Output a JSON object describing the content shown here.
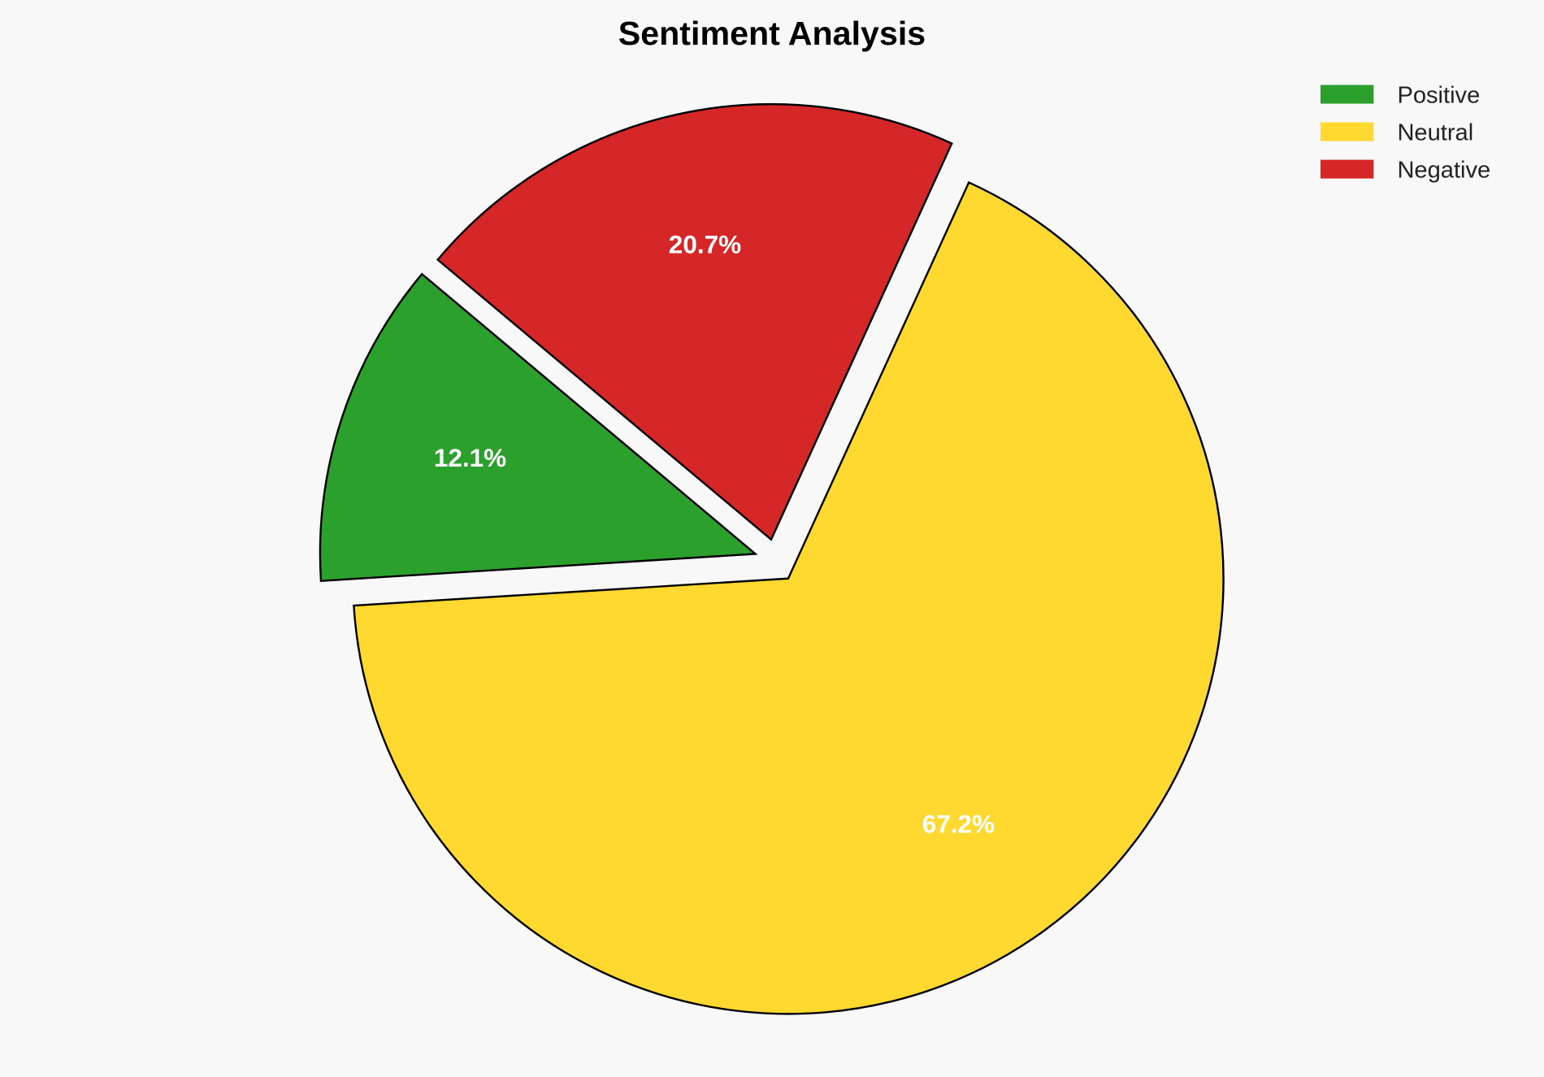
{
  "chart_data": {
    "type": "pie",
    "title": "Sentiment Analysis",
    "slices": [
      {
        "label": "Positive",
        "value": 12.1,
        "display": "12.1%",
        "color": "#2ca02c"
      },
      {
        "label": "Neutral",
        "value": 67.2,
        "display": "67.2%",
        "color": "#ffd92f"
      },
      {
        "label": "Negative",
        "value": 20.7,
        "display": "20.7%",
        "color": "#d62728"
      }
    ],
    "start_angle_deg": 140,
    "exploded": true,
    "legend_position": "top-right",
    "background": "#f8f8f8"
  }
}
